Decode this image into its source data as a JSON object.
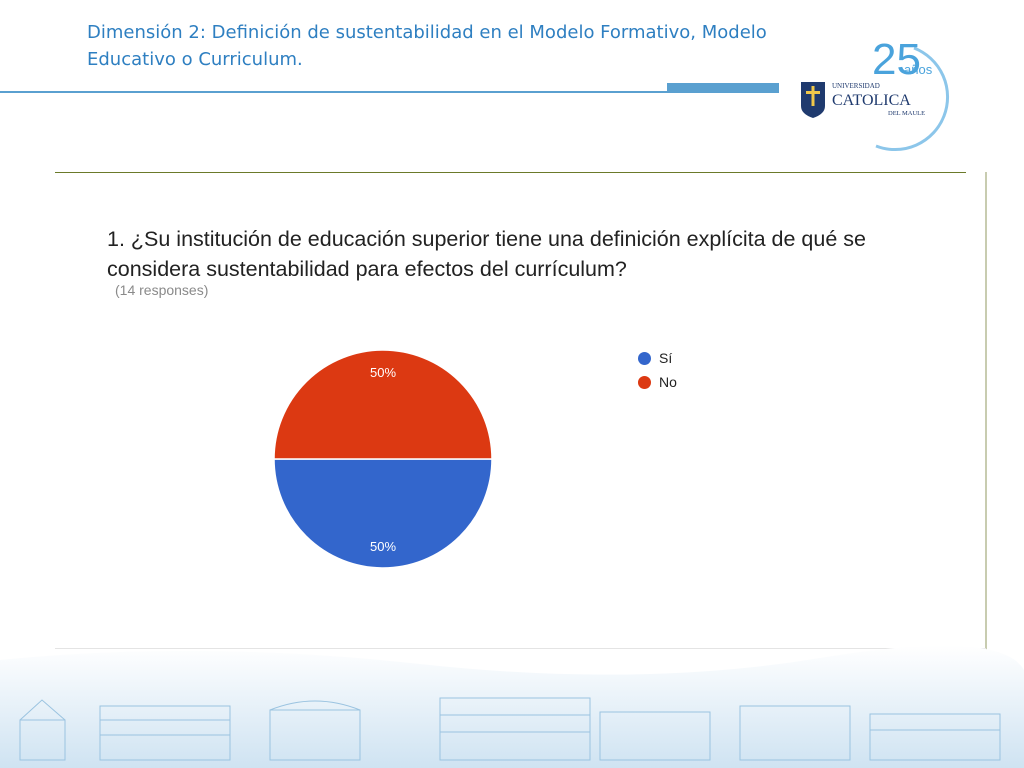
{
  "slide": {
    "title": "Dimensión 2: Definición de sustentabilidad en el Modelo Formativo, Modelo Educativo o Curriculum."
  },
  "logo": {
    "anniversary_number": "25",
    "anniversary_word": "años",
    "line1": "UNIVERSIDAD",
    "line2": "CATOLICA",
    "line3": "DEL MAULE"
  },
  "chart_data": {
    "type": "pie",
    "title": "1. ¿Su institución de educación superior tiene una definición explícita de qué se considera sustentabilidad para efectos del currículum?",
    "subtitle": "(14 responses)",
    "legend_position": "right",
    "categories": [
      "Sí",
      "No"
    ],
    "values": [
      50,
      50
    ],
    "labels": [
      "50%",
      "50%"
    ],
    "colors": [
      "#3366cc",
      "#dc3912"
    ]
  }
}
